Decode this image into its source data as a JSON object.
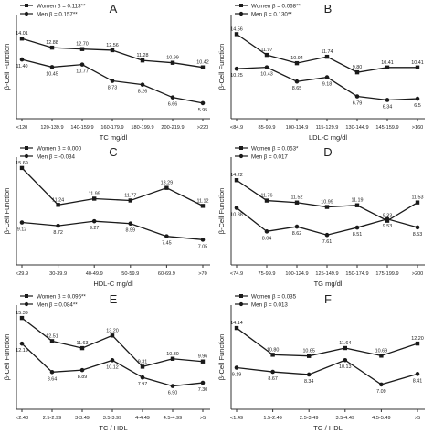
{
  "colors": {
    "line": "#1a1a1a",
    "marker": "#1a1a1a",
    "axis": "#333333",
    "background": "#ffffff"
  },
  "chart_data": [
    {
      "type": "line",
      "panel_label": "A",
      "title": "",
      "xlabel": "TC mg/dl",
      "ylabel": "β-Cell Function",
      "categories": [
        "<120",
        "120-139.9",
        "140-159.9",
        "160-179.9",
        "180-199.9",
        "200-219.9",
        ">220"
      ],
      "ylim": [
        4,
        17
      ],
      "legend_position": "top-left",
      "series": [
        {
          "name": "Women β = 0.113**",
          "marker": "square",
          "values": [
            14.01,
            12.88,
            12.7,
            12.56,
            11.28,
            10.99,
            10.42
          ],
          "labels": [
            "14.01",
            "12.88",
            "12.70",
            "12.56",
            "11.28",
            "10.99",
            "10.42"
          ]
        },
        {
          "name": "Men β = 0.157**",
          "marker": "circle",
          "values": [
            11.4,
            10.45,
            10.77,
            8.73,
            8.26,
            6.66,
            5.95
          ],
          "labels": [
            "11.40",
            "10.45",
            "10.77",
            "8.73",
            "8.26",
            "6.66",
            "5.95"
          ]
        }
      ]
    },
    {
      "type": "line",
      "panel_label": "B",
      "title": "",
      "xlabel": "LDL-C mg/dl",
      "ylabel": "β-Cell Function",
      "categories": [
        "<84.9",
        "85-99.9",
        "100-114.9",
        "115-129.9",
        "130-144.9",
        "145-159.9",
        ">160"
      ],
      "ylim": [
        4,
        17
      ],
      "legend_position": "top-left",
      "series": [
        {
          "name": "Women β = 0.068**",
          "marker": "square",
          "values": [
            14.56,
            11.97,
            10.94,
            11.74,
            9.8,
            10.41,
            10.41
          ],
          "labels": [
            "14.56",
            "11.97",
            "10.94",
            "11.74",
            "9.80",
            "10.41",
            "10.41"
          ]
        },
        {
          "name": "Men β = 0.130**",
          "marker": "circle",
          "values": [
            10.25,
            10.43,
            8.65,
            9.18,
            6.79,
            6.34,
            6.5
          ],
          "labels": [
            "10.25",
            "10.43",
            "8.65",
            "9.18",
            "6.79",
            "6.34",
            "6.5"
          ]
        }
      ]
    },
    {
      "type": "line",
      "panel_label": "C",
      "title": "",
      "xlabel": "HDL-C mg/dl",
      "ylabel": "β-Cell Function",
      "categories": [
        "<29.9",
        "30-39.9",
        "40-49.9",
        "50-59.9",
        "60-69.9",
        ">70"
      ],
      "ylim": [
        4,
        17
      ],
      "legend_position": "top-left",
      "series": [
        {
          "name": "Women β = 0.000",
          "marker": "square",
          "values": [
            15.69,
            11.24,
            11.99,
            11.77,
            13.29,
            11.12
          ],
          "labels": [
            "15.69",
            "11.24",
            "11.99",
            "11.77",
            "13.29",
            "11.12"
          ]
        },
        {
          "name": "Men β = -0.034",
          "marker": "circle",
          "values": [
            9.12,
            8.72,
            9.27,
            8.99,
            7.45,
            7.05
          ],
          "labels": [
            "9.12",
            "8.72",
            "9.27",
            "8.99",
            "7.45",
            "7.05"
          ]
        }
      ]
    },
    {
      "type": "line",
      "panel_label": "D",
      "title": "",
      "xlabel": "TG mg/dl",
      "ylabel": "β-Cell Function",
      "categories": [
        "<74.9",
        "75-99.9",
        "100-124.9",
        "125-149.9",
        "150-174.9",
        "175-199.9",
        ">200"
      ],
      "ylim": [
        4,
        17
      ],
      "legend_position": "top-left",
      "series": [
        {
          "name": "Women β = 0.053*",
          "marker": "square",
          "values": [
            14.22,
            11.76,
            11.52,
            10.99,
            11.19,
            9.33,
            11.53
          ],
          "labels": [
            "14.22",
            "11.76",
            "11.52",
            "10.99",
            "11.19",
            "9.33",
            "11.53"
          ]
        },
        {
          "name": "Men β = 0.017",
          "marker": "circle",
          "values": [
            10.88,
            8.04,
            8.62,
            7.61,
            8.51,
            9.53,
            8.53
          ],
          "labels": [
            "10.88",
            "8.04",
            "8.62",
            "7.61",
            "8.51",
            "9.53",
            "8.53"
          ]
        }
      ]
    },
    {
      "type": "line",
      "panel_label": "E",
      "title": "",
      "xlabel": "TC / HDL",
      "ylabel": "β-Cell Function",
      "categories": [
        "<2.48",
        "2.5-2.99",
        "3-3.49",
        "3.5-3.99",
        "4-4.49",
        "4.5-4.99",
        ">5"
      ],
      "ylim": [
        4,
        17
      ],
      "legend_position": "top-left",
      "series": [
        {
          "name": "Women β = 0.096**",
          "marker": "square",
          "values": [
            15.39,
            12.51,
            11.63,
            13.2,
            9.31,
            10.3,
            9.96
          ],
          "labels": [
            "15.39",
            "12.51",
            "11.63",
            "13.20",
            "9.31",
            "10.30",
            "9.96"
          ]
        },
        {
          "name": "Men β = 0.084**",
          "marker": "circle",
          "values": [
            12.19,
            8.64,
            8.89,
            10.12,
            7.97,
            6.9,
            7.3
          ],
          "labels": [
            "12.19",
            "8.64",
            "8.89",
            "10.12",
            "7.97",
            "6.90",
            "7.30"
          ]
        }
      ]
    },
    {
      "type": "line",
      "panel_label": "F",
      "title": "",
      "xlabel": "TG / HDL",
      "ylabel": "β-Cell Function",
      "categories": [
        "<1.49",
        "1.5-2.49",
        "2.5-3.49",
        "3.5-4.49",
        "4.5-5.49",
        ">5"
      ],
      "ylim": [
        4,
        17
      ],
      "legend_position": "top-left",
      "series": [
        {
          "name": "Women β = 0.035",
          "marker": "square",
          "values": [
            14.14,
            10.8,
            10.65,
            11.64,
            10.69,
            12.2
          ],
          "labels": [
            "14.14",
            "10.80",
            "10.65",
            "11.64",
            "10.69",
            "12.20"
          ]
        },
        {
          "name": "Men β = 0.013",
          "marker": "circle",
          "values": [
            9.19,
            8.67,
            8.34,
            10.13,
            7.09,
            8.41
          ],
          "labels": [
            "9.19",
            "8.67",
            "8.34",
            "10.13",
            "7.09",
            "8.41"
          ]
        }
      ]
    }
  ]
}
